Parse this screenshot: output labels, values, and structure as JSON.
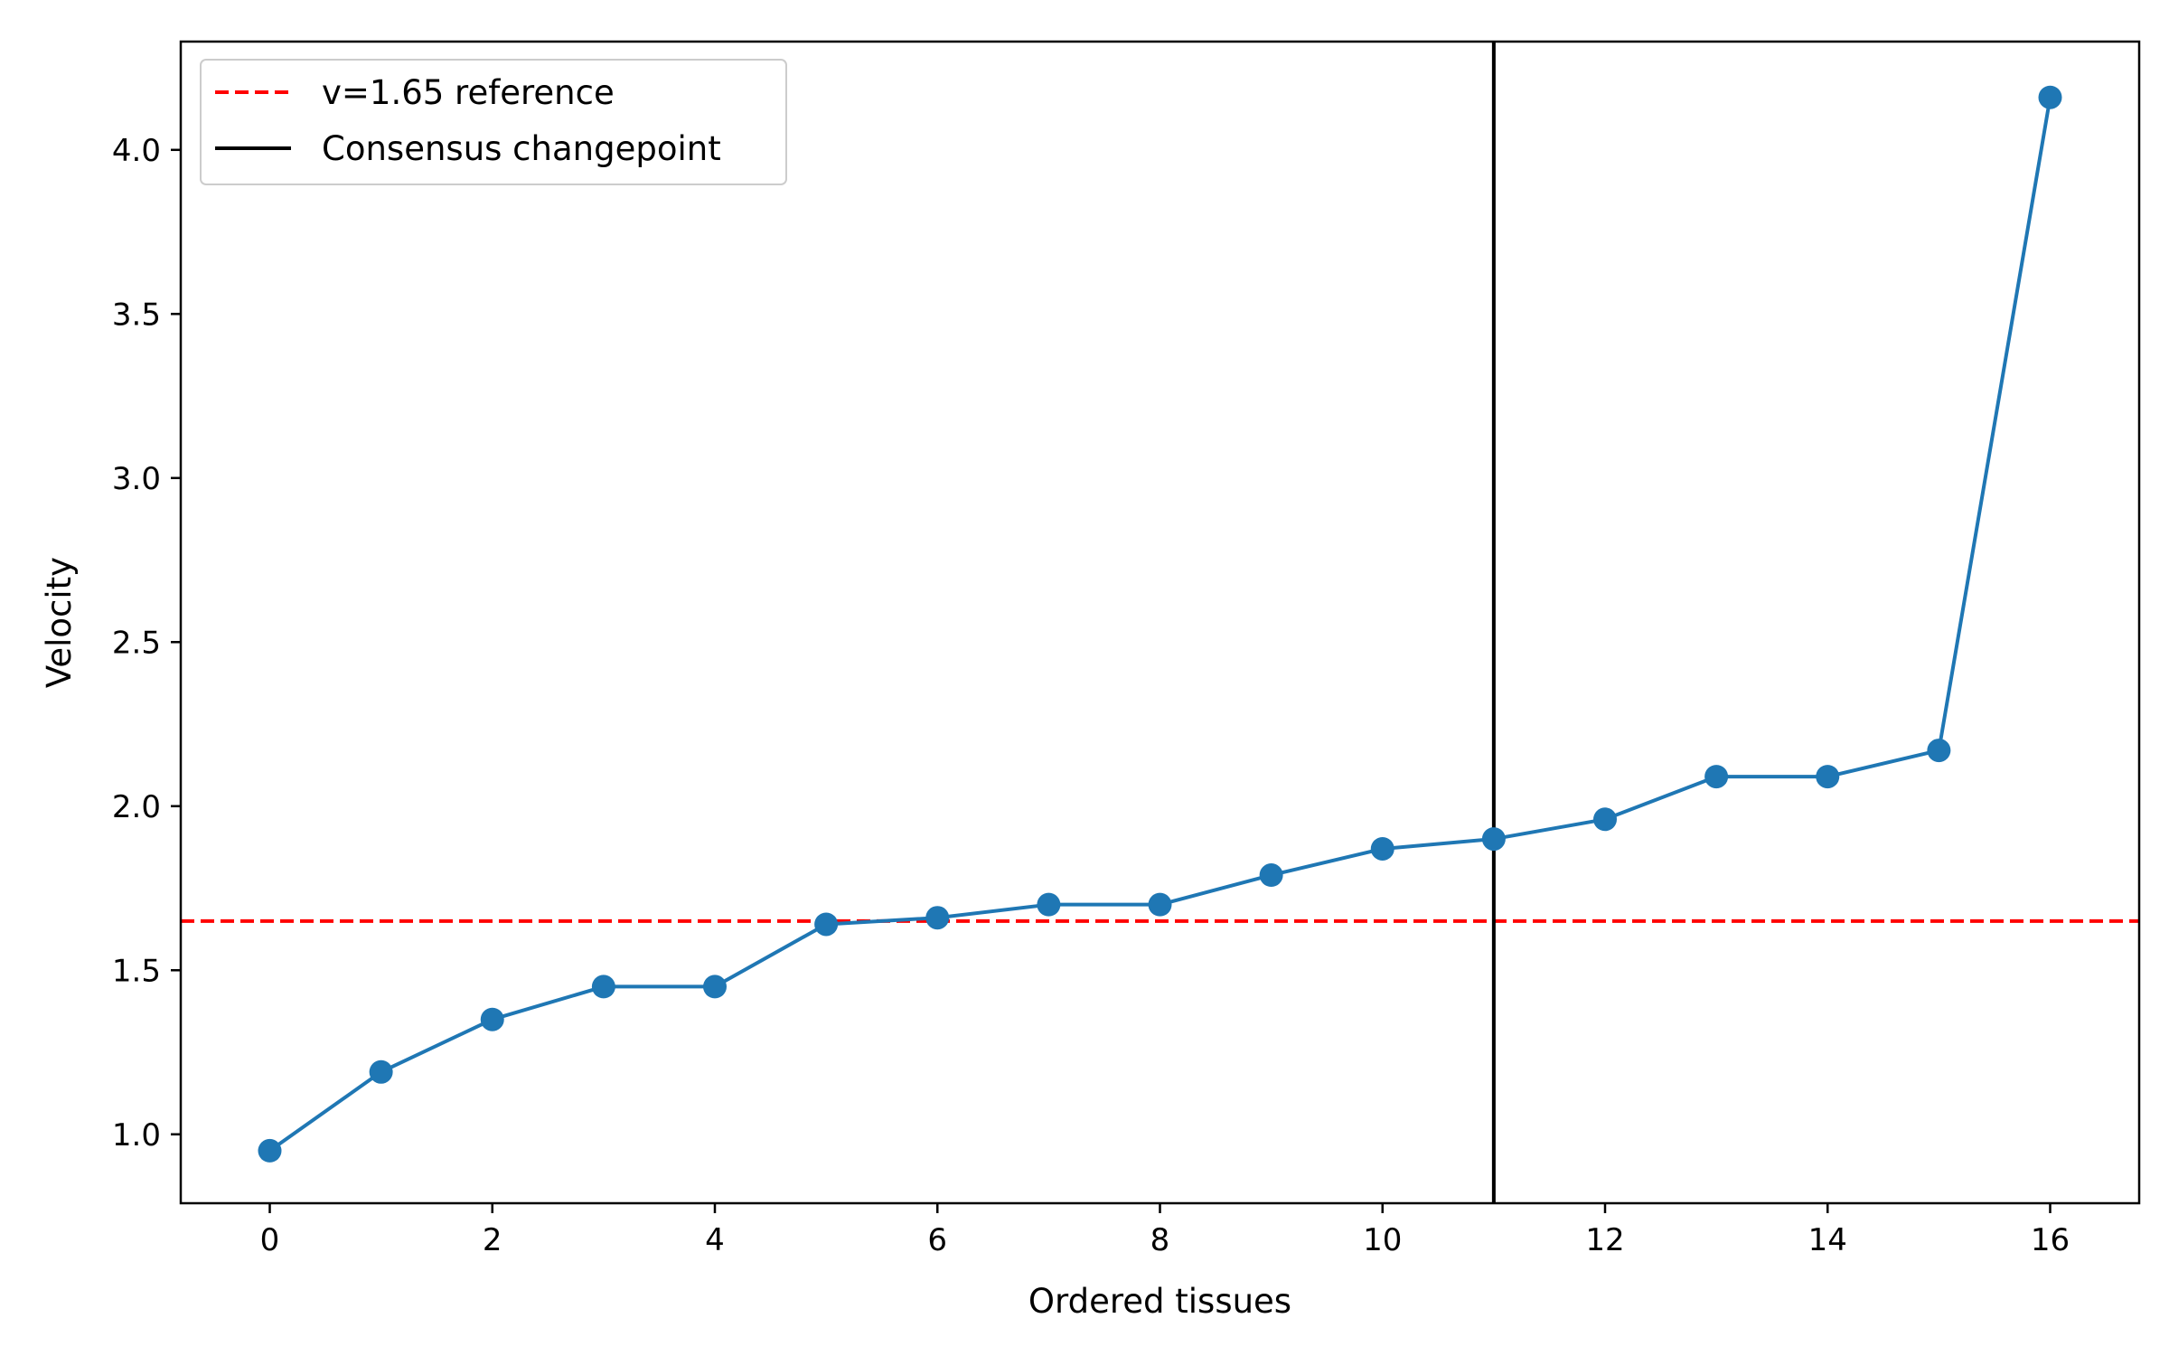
{
  "chart_data": {
    "type": "line",
    "title": "",
    "xlabel": "Ordered tissues",
    "ylabel": "Velocity",
    "xlim": [
      -0.8,
      16.8
    ],
    "ylim": [
      0.79,
      4.33
    ],
    "xticks": [
      0,
      2,
      4,
      6,
      8,
      10,
      12,
      14,
      16
    ],
    "xtick_labels": [
      "0",
      "2",
      "4",
      "6",
      "8",
      "10",
      "12",
      "14",
      "16"
    ],
    "yticks": [
      1.0,
      1.5,
      2.0,
      2.5,
      3.0,
      3.5,
      4.0
    ],
    "ytick_labels": [
      "1.0",
      "1.5",
      "2.0",
      "2.5",
      "3.0",
      "3.5",
      "4.0"
    ],
    "grid": false,
    "legend_position": "top-left",
    "series": [
      {
        "color": "#1f77b4",
        "marker": "circle",
        "x": [
          0,
          1,
          2,
          3,
          4,
          5,
          6,
          7,
          8,
          9,
          10,
          11,
          12,
          13,
          14,
          15,
          16
        ],
        "y": [
          0.95,
          1.19,
          1.35,
          1.45,
          1.45,
          1.64,
          1.66,
          1.7,
          1.7,
          1.79,
          1.87,
          1.9,
          1.96,
          2.09,
          2.09,
          2.17,
          4.16
        ]
      }
    ],
    "reference_lines": [
      {
        "orientation": "horizontal",
        "value": 1.65,
        "color": "#ff0000",
        "style": "dashed",
        "label": "v=1.65 reference"
      },
      {
        "orientation": "vertical",
        "value": 11,
        "color": "#000000",
        "style": "solid",
        "label": "Consensus changepoint"
      }
    ]
  }
}
